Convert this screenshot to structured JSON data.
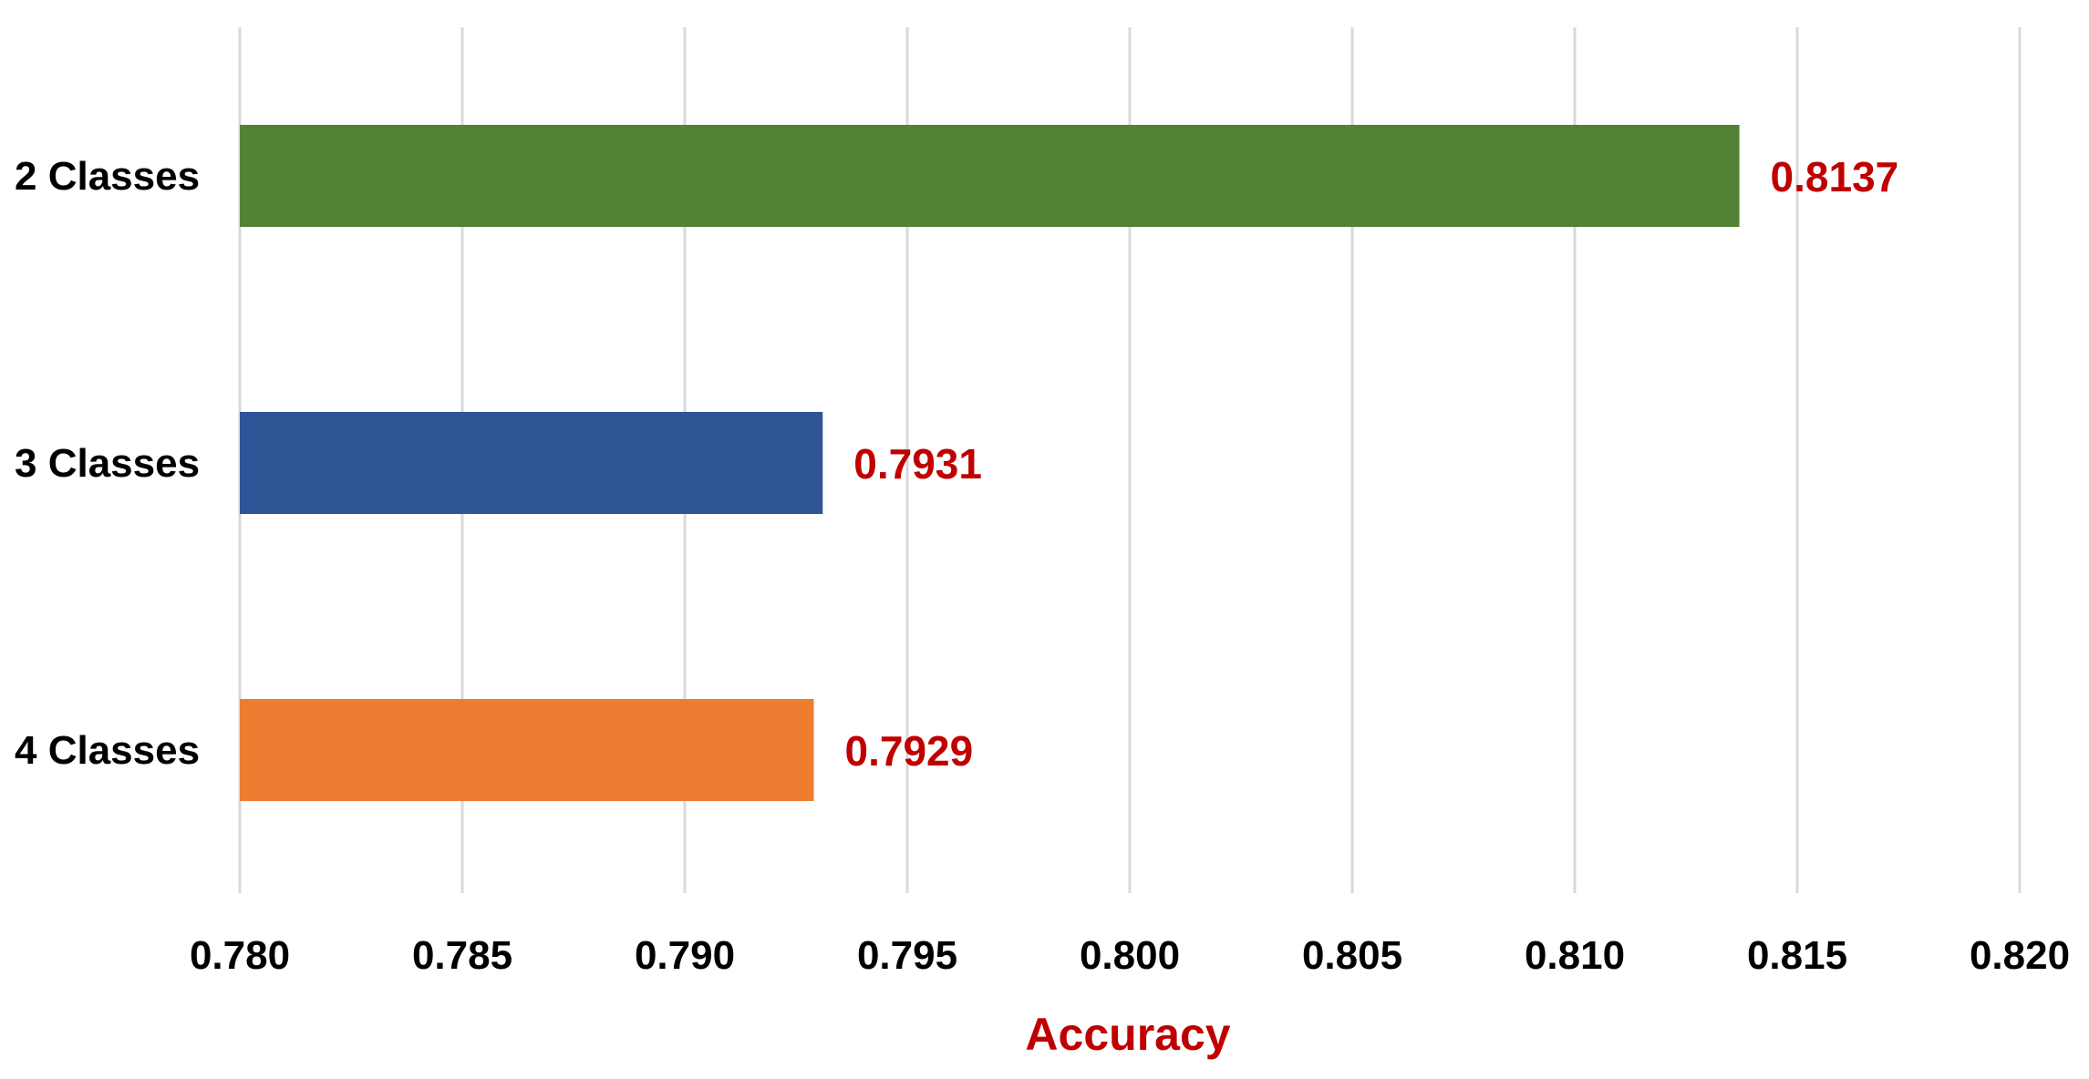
{
  "chart_data": {
    "type": "bar",
    "orientation": "horizontal",
    "title": "",
    "xlabel": "Accuracy",
    "ylabel": "",
    "categories": [
      "2 Classes",
      "3 Classes",
      "4 Classes"
    ],
    "values": [
      0.8137,
      0.7931,
      0.7929
    ],
    "data_labels": [
      "0.8137",
      "0.7931",
      "0.7929"
    ],
    "bar_colors": [
      "#548235",
      "#2f5597",
      "#ed7d31"
    ],
    "xlim": [
      0.78,
      0.82
    ],
    "x_ticks": [
      0.78,
      0.785,
      0.79,
      0.795,
      0.8,
      0.805,
      0.81,
      0.815,
      0.82
    ],
    "x_tick_labels": [
      "0.780",
      "0.785",
      "0.790",
      "0.795",
      "0.800",
      "0.805",
      "0.810",
      "0.815",
      "0.820"
    ],
    "grid": "vertical",
    "legend": "none",
    "label_color": "#c00000",
    "axis_title_color": "#c00000"
  }
}
